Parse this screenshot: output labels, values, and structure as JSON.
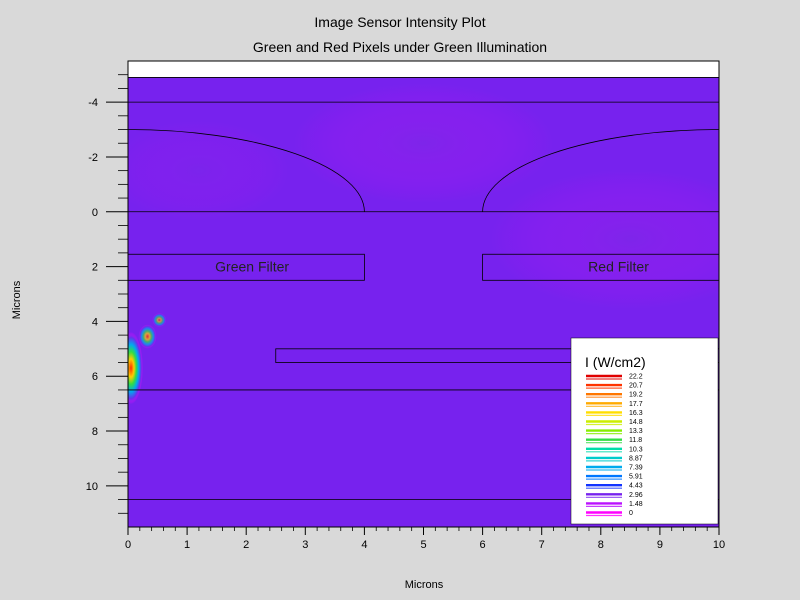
{
  "chart_data": {
    "type": "heatmap",
    "title": "Image Sensor Intensity Plot",
    "subtitle": "Green and Red Pixels under Green Illumination",
    "xlabel": "Microns",
    "ylabel": "Microns",
    "xlim": [
      0,
      10
    ],
    "ylim": [
      -5.5,
      11.5
    ],
    "y_inverted": true,
    "x_ticks": [
      "0",
      "1",
      "2",
      "3",
      "4",
      "5",
      "6",
      "7",
      "8",
      "9",
      "10"
    ],
    "y_ticks": [
      "-4",
      "-2",
      "0",
      "2",
      "4",
      "6",
      "8",
      "10"
    ],
    "region_labels": [
      {
        "text": "Green Filter",
        "x": 2.1,
        "y": 2.0
      },
      {
        "text": "Red Filter",
        "x": 8.3,
        "y": 2.0
      }
    ],
    "structure": {
      "empty_band_top": -5.5,
      "empty_band_bottom": -4.9,
      "horizontal_lines": [
        -4.0,
        0.0,
        6.5,
        10.5
      ],
      "lenses": [
        {
          "x_start": 0,
          "x_end": 4,
          "y_top": -3.0,
          "y_base": 0
        },
        {
          "x_start": 6,
          "x_end": 10,
          "y_top": -3.0,
          "y_base": 0
        }
      ],
      "filters": [
        {
          "x0": 0,
          "x1": 4.0,
          "y0": 1.55,
          "y1": 2.5
        },
        {
          "x0": 6.0,
          "x1": 10,
          "y0": 1.55,
          "y1": 2.5
        }
      ],
      "bar": {
        "x0": 2.5,
        "x1": 10,
        "y0": 5.0,
        "y1": 5.5
      }
    },
    "hotspot": {
      "x": 0.05,
      "y": 5.7,
      "value": 22.2
    },
    "background_value": 2.96,
    "legend": {
      "title": "I (W/cm2)",
      "placement": "bottom-right",
      "levels": [
        "22.2",
        "20.7",
        "19.2",
        "17.7",
        "16.3",
        "14.8",
        "13.3",
        "11.8",
        "10.3",
        "8.87",
        "7.39",
        "5.91",
        "4.43",
        "2.96",
        "1.48",
        "0"
      ],
      "colors": [
        "#e00000",
        "#ff3300",
        "#ff7700",
        "#ffaa00",
        "#ffdd00",
        "#ccee00",
        "#88ee00",
        "#33dd44",
        "#00ddaa",
        "#00cccc",
        "#00aaee",
        "#0077ff",
        "#1133ff",
        "#7722ee",
        "#bb11ff",
        "#ff00ff"
      ]
    }
  }
}
